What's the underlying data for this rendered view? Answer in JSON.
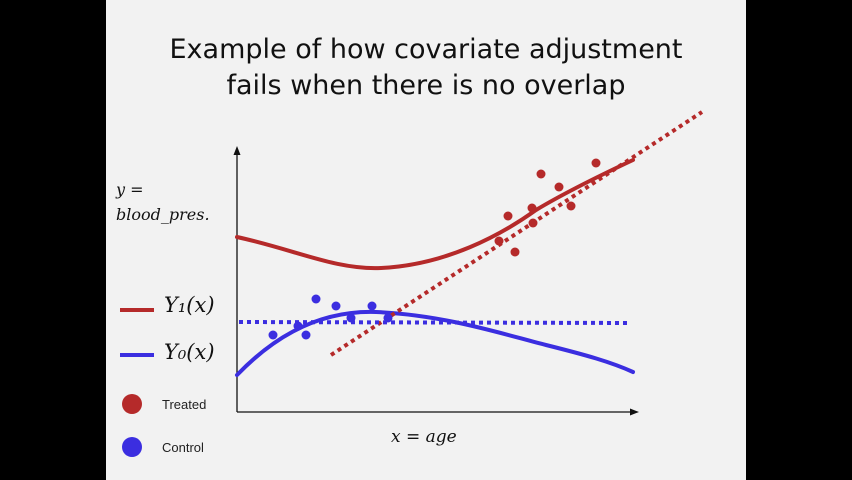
{
  "slide": {
    "title_line1": "Example of how covariate adjustment",
    "title_line2": "fails when there is no overlap"
  },
  "axes": {
    "y_label_line1": "y =",
    "y_label_line2": "blood_pres.",
    "x_label": "x = age"
  },
  "legend": {
    "y1_label": "Y₁(x)",
    "y0_label": "Y₀(x)",
    "treated_label": "Treated",
    "control_label": "Control"
  },
  "colors": {
    "treated": "#b52a2a",
    "control": "#3b2ee0",
    "axis": "#111111",
    "background": "#f2f2f2"
  },
  "icons": {
    "y_axis_arrow": "arrow-up",
    "x_axis_arrow": "arrow-right"
  }
}
